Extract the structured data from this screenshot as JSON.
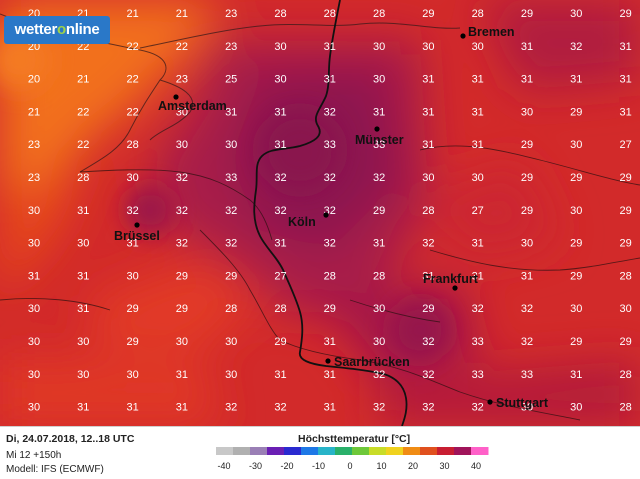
{
  "logo": {
    "brand": "wetter",
    "brand_highlight": "o",
    "brand_rest": "nline"
  },
  "footer": {
    "date_line": "Di, 24.07.2018, 12..18 UTC",
    "run_line": "Mi 12 +150h",
    "model_line": "Modell: IFS (ECMWF)"
  },
  "legend": {
    "title": "Höchsttemperatur [°C]",
    "ticks": [
      "-40",
      "-30",
      "-20",
      "-10",
      "0",
      "10",
      "20",
      "30",
      "40"
    ],
    "colors": [
      "#c8c8c8",
      "#b0b0b0",
      "#9a7fb5",
      "#6a1fb4",
      "#2a2ad0",
      "#1e78e6",
      "#28b4c8",
      "#2ab06a",
      "#6ec83a",
      "#c8dc28",
      "#f0d21e",
      "#f08c14",
      "#e0501e",
      "#c81e32",
      "#a0145a",
      "#ff60c8"
    ]
  },
  "cities": [
    {
      "name": "Bremen"
    },
    {
      "name": "Amsterdam"
    },
    {
      "name": "Münster"
    },
    {
      "name": "Köln"
    },
    {
      "name": "Brüssel"
    },
    {
      "name": "Frankfurt"
    },
    {
      "name": "Saarbrücken"
    },
    {
      "name": "Stuttgart"
    }
  ],
  "grid_values": [
    [
      "20",
      "21",
      "21",
      "21",
      "23",
      "28",
      "28",
      "28",
      "29",
      "28",
      "29",
      "30",
      "29",
      "29"
    ],
    [
      "20",
      "22",
      "22",
      "22",
      "23",
      "30",
      "31",
      "30",
      "30",
      "30",
      "31",
      "32",
      "31",
      "30"
    ],
    [
      "20",
      "21",
      "22",
      "23",
      "25",
      "30",
      "31",
      "30",
      "31",
      "31",
      "31",
      "31",
      "31",
      "30"
    ],
    [
      "21",
      "22",
      "22",
      "30",
      "31",
      "31",
      "32",
      "31",
      "31",
      "31",
      "30",
      "29",
      "31",
      "30"
    ],
    [
      "23",
      "22",
      "28",
      "30",
      "30",
      "31",
      "33",
      "33",
      "31",
      "31",
      "29",
      "30",
      "27",
      "30"
    ],
    [
      "23",
      "28",
      "30",
      "32",
      "33",
      "32",
      "32",
      "32",
      "30",
      "30",
      "29",
      "29",
      "29",
      "30"
    ],
    [
      "30",
      "31",
      "32",
      "32",
      "32",
      "32",
      "32",
      "29",
      "28",
      "27",
      "29",
      "30",
      "29",
      "30"
    ],
    [
      "30",
      "30",
      "31",
      "32",
      "32",
      "31",
      "32",
      "31",
      "32",
      "31",
      "30",
      "29",
      "29",
      "29"
    ],
    [
      "31",
      "31",
      "30",
      "29",
      "29",
      "27",
      "28",
      "28",
      "31",
      "31",
      "31",
      "29",
      "28",
      "29"
    ],
    [
      "30",
      "31",
      "29",
      "29",
      "28",
      "28",
      "29",
      "30",
      "29",
      "32",
      "32",
      "30",
      "30",
      "29"
    ],
    [
      "30",
      "30",
      "29",
      "30",
      "30",
      "29",
      "31",
      "30",
      "32",
      "33",
      "32",
      "29",
      "29",
      "29"
    ],
    [
      "30",
      "30",
      "30",
      "31",
      "30",
      "31",
      "31",
      "32",
      "32",
      "33",
      "33",
      "31",
      "28",
      "28"
    ],
    [
      "30",
      "31",
      "31",
      "31",
      "32",
      "32",
      "31",
      "32",
      "32",
      "32",
      "30",
      "30",
      "28",
      "28"
    ]
  ]
}
